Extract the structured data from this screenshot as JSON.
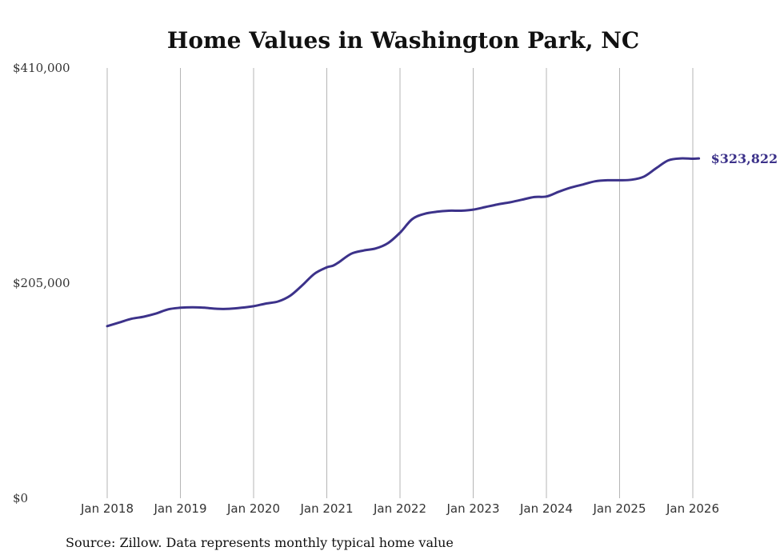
{
  "chart_data": {
    "type": "line",
    "title": "Home Values in Washington Park, NC",
    "xlabel": "",
    "ylabel": "",
    "ylim": [
      0,
      410000
    ],
    "y_tick_values": [
      0,
      205000,
      410000
    ],
    "y_tick_labels": [
      "$0",
      "$205,000",
      "$410,000"
    ],
    "x_tick_labels": [
      "Jan 2018",
      "Jan 2019",
      "Jan 2020",
      "Jan 2021",
      "Jan 2022",
      "Jan 2023",
      "Jan 2024",
      "Jan 2025",
      "Jan 2026"
    ],
    "x_tick_values": [
      0,
      12,
      24,
      36,
      48,
      60,
      72,
      84,
      96
    ],
    "series": [
      {
        "name": "Typical home value",
        "x": [
          0,
          2,
          4,
          6,
          8,
          10,
          12,
          14,
          16,
          18,
          20,
          22,
          24,
          26,
          28,
          30,
          32,
          34,
          36,
          37,
          38,
          40,
          42,
          44,
          46,
          48,
          50,
          52,
          54,
          56,
          58,
          60,
          62,
          64,
          66,
          68,
          70,
          72,
          74,
          76,
          78,
          80,
          82,
          84,
          86,
          88,
          90,
          92,
          94,
          96,
          97
        ],
        "values": [
          164000,
          167500,
          171000,
          173000,
          176000,
          180000,
          181500,
          182000,
          181500,
          180500,
          180500,
          181500,
          183000,
          185500,
          187500,
          193000,
          203000,
          214000,
          220000,
          221500,
          225000,
          233000,
          236000,
          238000,
          243000,
          253000,
          266000,
          271000,
          273000,
          274000,
          274000,
          275000,
          277500,
          280000,
          282000,
          284500,
          287000,
          287500,
          292000,
          296000,
          299000,
          302000,
          303000,
          303000,
          303500,
          306500,
          314500,
          322000,
          323800,
          323500,
          323822
        ]
      }
    ],
    "end_label": "$323,822",
    "grid": "vertical",
    "colors": {
      "line": "#3c328a",
      "grid": "#b5b5b5"
    }
  },
  "footer": {
    "source": "Source: Zillow. Data represents monthly typical home value"
  }
}
